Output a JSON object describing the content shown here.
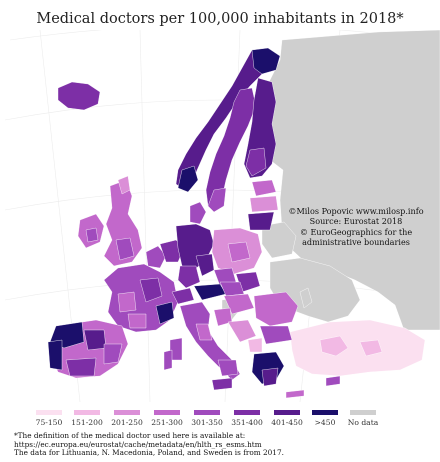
{
  "title": "Medical doctors per 100,000 inhabitants in 2018*",
  "credits": [
    "©Milos Popovic www.milosp.info",
    "Source: Eurostat 2018",
    "© EuroGeographics for the",
    "administrative boundaries"
  ],
  "legend": {
    "classes": [
      {
        "label": "75-150",
        "color": "#fbe0f0"
      },
      {
        "label": "151-200",
        "color": "#f2b9e4"
      },
      {
        "label": "201-250",
        "color": "#db8fd7"
      },
      {
        "label": "251-300",
        "color": "#c268cb"
      },
      {
        "label": "301-350",
        "color": "#a04bbd"
      },
      {
        "label": "351-400",
        "color": "#7d2fa6"
      },
      {
        "label": "401-450",
        "color": "#571c8c"
      },
      {
        "label": ">450",
        "color": "#1b0f6b"
      },
      {
        "label": "No data",
        "color": "#cfcfcf"
      }
    ]
  },
  "footnote": [
    "*The definition of the medical doctor used here is available at:",
    "https://ec.europa.eu/eurostat/cache/metadata/en/hlth_rs_esms.htm",
    "The data for Lithuania, N. Macedonia, Poland, and Sweden is from 2017."
  ],
  "colors": {
    "sea": "#ffffff",
    "nodata": "#cfcfcf",
    "graticule": "#e6e6e6"
  }
}
